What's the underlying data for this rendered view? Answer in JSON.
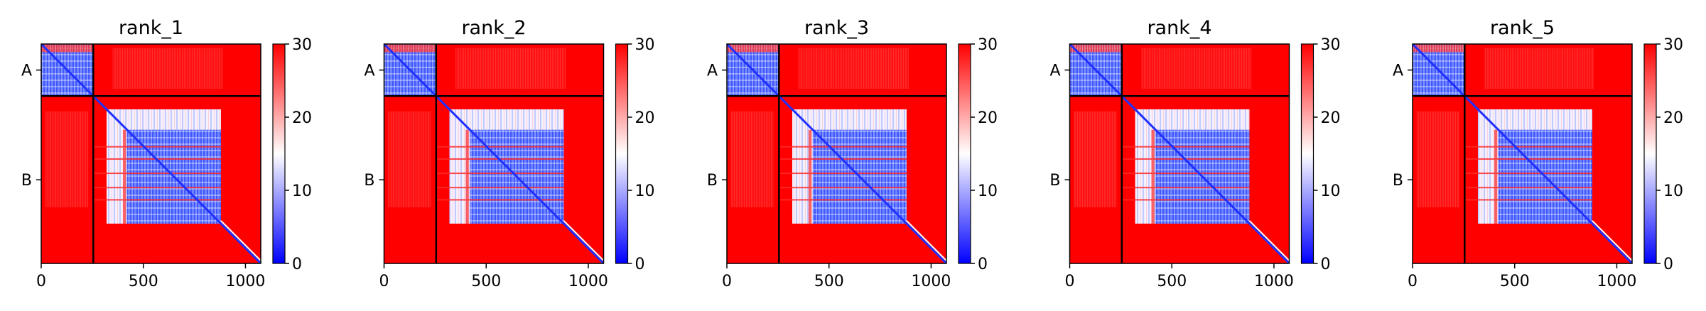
{
  "chart_data": {
    "type": "heatmap",
    "description_of_panels": "five predicted aligned error heatmaps",
    "panels": [
      {
        "title": "rank_1"
      },
      {
        "title": "rank_2"
      },
      {
        "title": "rank_3"
      },
      {
        "title": "rank_4"
      },
      {
        "title": "rank_5"
      }
    ],
    "x_range": [
      0,
      1075
    ],
    "x_ticks": [
      0,
      500,
      1000
    ],
    "x_tick_labels": [
      "0",
      "500",
      "1000"
    ],
    "chains": [
      {
        "label": "A",
        "start": 0,
        "end": 255
      },
      {
        "label": "B",
        "start": 255,
        "end": 1075
      }
    ],
    "colorbar": {
      "range": [
        0,
        30
      ],
      "ticks": [
        0,
        10,
        20,
        30
      ],
      "tick_labels": [
        "0",
        "10",
        "20",
        "30"
      ],
      "colors": [
        "#0000ff",
        "#ffffff",
        "#ff0000"
      ]
    },
    "grid": false,
    "legend": "none"
  }
}
